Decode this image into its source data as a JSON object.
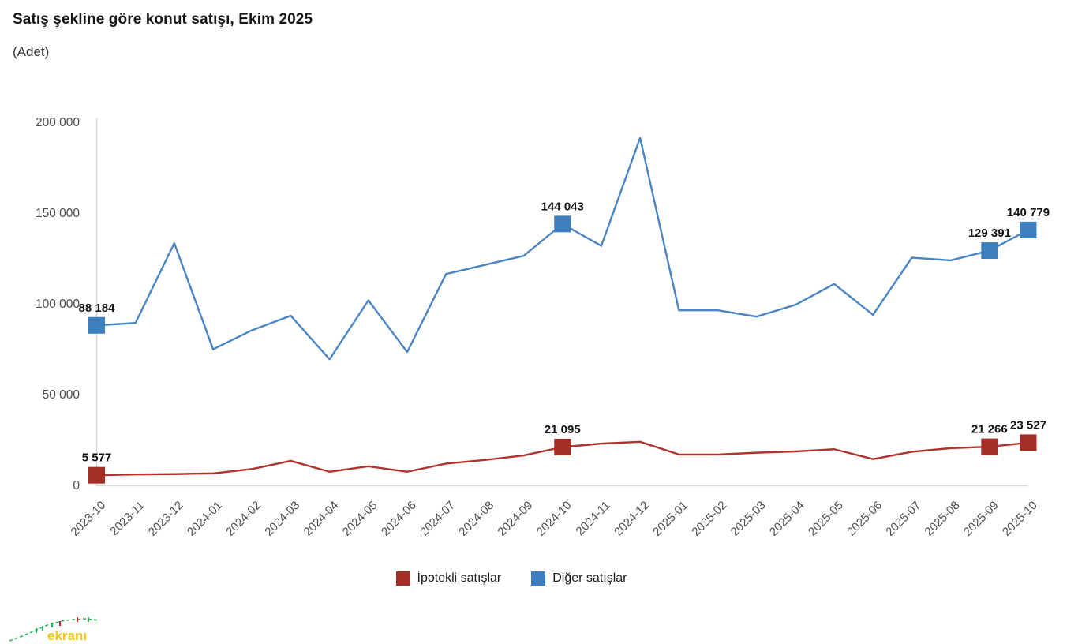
{
  "header": {
    "title": "Satış şekline göre konut satışı, Ekim 2025",
    "subtitle": "(Adet)"
  },
  "chart_data": {
    "type": "line",
    "categories": [
      "2023-10",
      "2023-11",
      "2023-12",
      "2024-01",
      "2024-02",
      "2024-03",
      "2024-04",
      "2024-05",
      "2024-06",
      "2024-07",
      "2024-08",
      "2024-09",
      "2024-10",
      "2024-11",
      "2024-12",
      "2025-01",
      "2025-02",
      "2025-03",
      "2025-04",
      "2025-05",
      "2025-06",
      "2025-07",
      "2025-08",
      "2025-09",
      "2025-10"
    ],
    "series": [
      {
        "name": "İpotekli satışlar",
        "marker_color": "#a42d25",
        "line_color": "#b0342b",
        "values": [
          5577,
          6000,
          6200,
          6600,
          9000,
          13500,
          7500,
          10500,
          7500,
          12000,
          14000,
          16500,
          21095,
          23000,
          24000,
          17000,
          17000,
          18000,
          18700,
          19900,
          14500,
          18500,
          20500,
          21266,
          23527
        ],
        "labeled_points": {
          "0": "5 577",
          "12": "21 095",
          "23": "21 266",
          "24": "23 527"
        }
      },
      {
        "name": "Diğer satışlar",
        "marker_color": "#3d7ebf",
        "line_color": "#4a84c4",
        "values": [
          88184,
          89500,
          133500,
          75000,
          85500,
          93500,
          69500,
          102000,
          73500,
          116500,
          121500,
          126500,
          144043,
          132000,
          191500,
          96500,
          96500,
          93000,
          99500,
          111000,
          94000,
          125500,
          124000,
          129391,
          140779
        ],
        "labeled_points": {
          "0": "88 184",
          "12": "144 043",
          "23": "129 391",
          "24": "140 779"
        }
      }
    ],
    "y_axis": {
      "range": [
        0,
        200000
      ],
      "ticks": [
        0,
        50000,
        100000,
        150000,
        200000
      ],
      "tick_labels": [
        "0",
        "50 000",
        "100 000",
        "150 000",
        "200 000"
      ],
      "grid": false
    },
    "x_axis": {
      "label_rotation": -45
    },
    "legend_position": "bottom",
    "axis_color": "#d9d9d9",
    "tick_text_color": "#4d4d4d",
    "data_label_color": "#111111"
  },
  "watermark": {
    "text": "ekranı"
  }
}
